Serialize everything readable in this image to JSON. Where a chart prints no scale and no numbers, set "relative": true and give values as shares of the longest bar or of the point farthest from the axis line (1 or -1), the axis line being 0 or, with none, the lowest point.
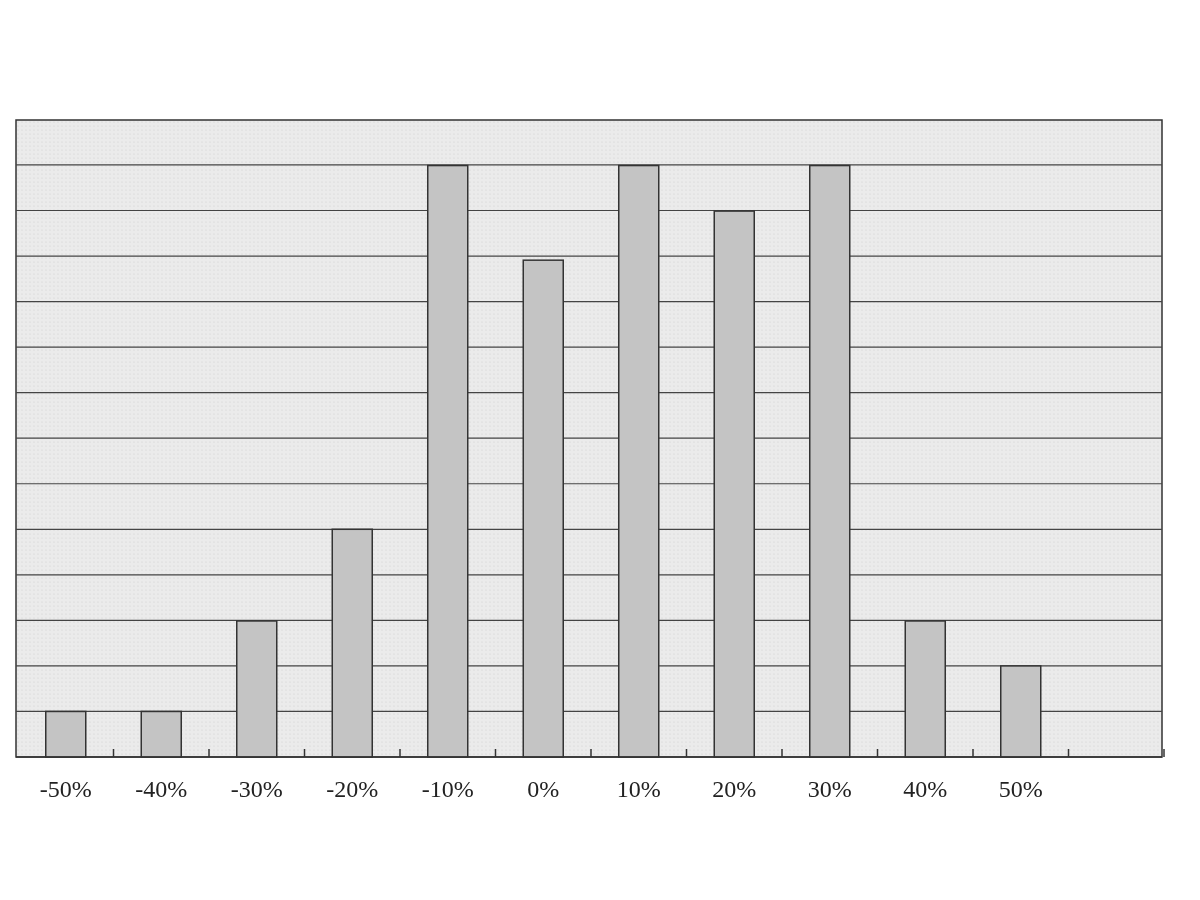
{
  "chart_data": {
    "type": "bar",
    "relative": true,
    "grid": "y",
    "categories": [
      "-50%",
      "-40%",
      "-30%",
      "-20%",
      "-10%",
      "0%",
      "10%",
      "20%",
      "30%",
      "40%",
      "50%"
    ],
    "values": [
      0.077,
      0.077,
      0.23,
      0.385,
      1,
      0.84,
      1,
      0.923,
      1,
      0.23,
      0.154
    ],
    "color": "#c4c4c4"
  }
}
